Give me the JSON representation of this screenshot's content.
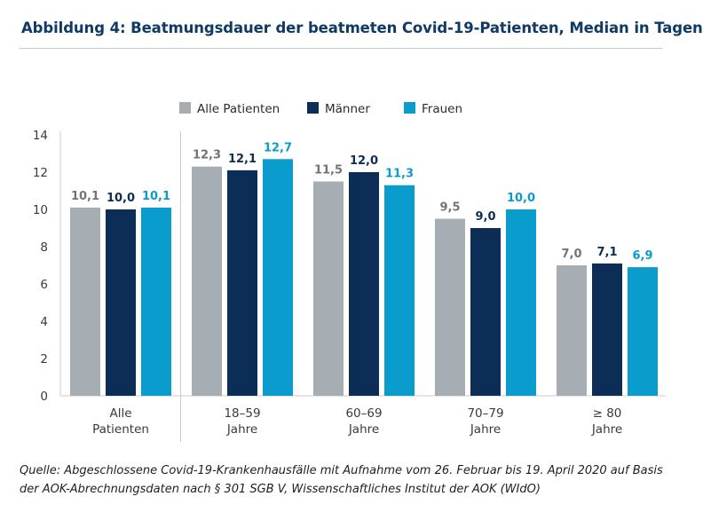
{
  "title": "Abbildung 4: Beatmungsdauer der beatmeten Covid-19-Patienten, Median in Tagen",
  "source": {
    "line1": "Quelle: Abgeschlossene Covid-19-Krankenhausfälle mit Aufnahme vom 26. Februar bis 19. April 2020 auf Basis",
    "line2": "der AOK-Abrechnungsdaten nach § 301 SGB V, Wissenschaftliches Institut der AOK (WIdO)"
  },
  "chart_data": {
    "type": "bar",
    "categories": [
      [
        "Alle",
        "Patienten"
      ],
      [
        "18–59",
        "Jahre"
      ],
      [
        "60–69",
        "Jahre"
      ],
      [
        "70–79",
        "Jahre"
      ],
      [
        "≥ 80",
        "Jahre"
      ]
    ],
    "series": [
      {
        "name": "Alle Patienten",
        "values": [
          10.1,
          12.3,
          11.5,
          9.5,
          7.0
        ],
        "labels": [
          "10,1",
          "12,3",
          "11,5",
          "9,5",
          "7,0"
        ],
        "color": "#a6adb3",
        "label_color": "#6f7479"
      },
      {
        "name": "Männer",
        "values": [
          10.0,
          12.1,
          12.0,
          9.0,
          7.1
        ],
        "labels": [
          "10,0",
          "12,1",
          "12,0",
          "9,0",
          "7,1"
        ],
        "color": "#0c2d56",
        "label_color": "#0c2d56"
      },
      {
        "name": "Frauen",
        "values": [
          10.1,
          12.7,
          11.3,
          10.0,
          6.9
        ],
        "labels": [
          "10,1",
          "12,7",
          "11,3",
          "10,0",
          "6,9"
        ],
        "color": "#0a9ccc",
        "label_color": "#0a9ccc"
      }
    ],
    "ylim": [
      0,
      14
    ],
    "yticks": [
      "0",
      "2",
      "4",
      "6",
      "8",
      "10",
      "12",
      "14"
    ],
    "grid": false,
    "legend_position": "top-center"
  }
}
